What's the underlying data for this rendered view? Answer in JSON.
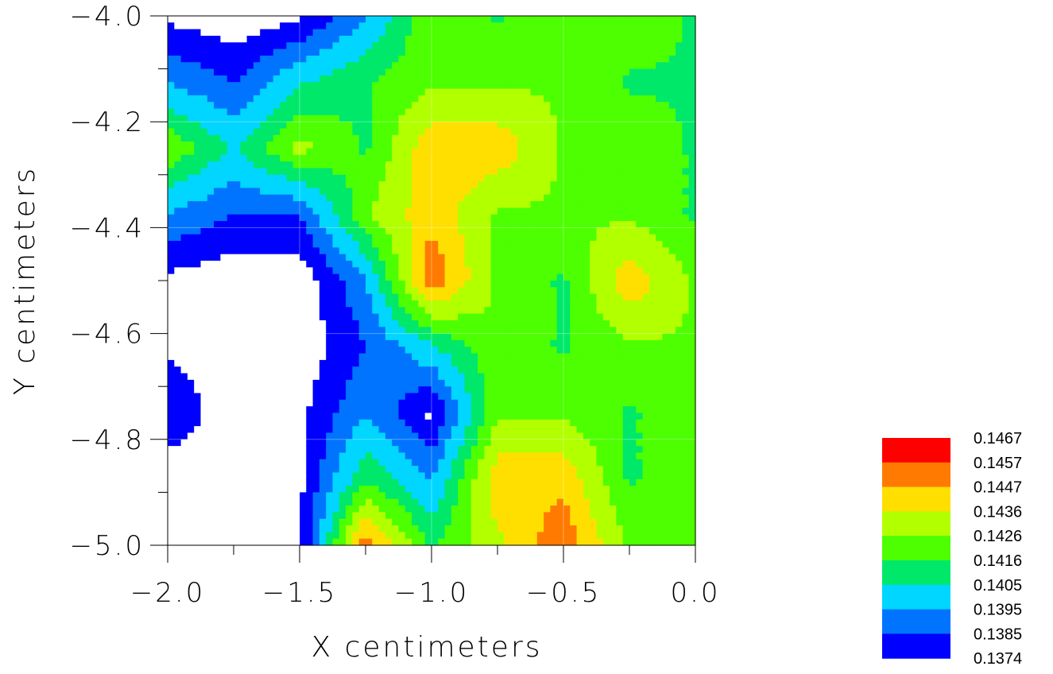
{
  "chart_data": {
    "type": "contour",
    "xlabel": "X centimeters",
    "ylabel": "Y centimeters",
    "xlim": [
      -2.0,
      0.0
    ],
    "ylim": [
      -5.0,
      -4.0
    ],
    "x_ticks": [
      "−2.0",
      "−1.5",
      "−1.0",
      "−0.5",
      "0.0"
    ],
    "y_ticks": [
      "−4.0",
      "−4.2",
      "−4.4",
      "−4.6",
      "−4.8",
      "−5.0"
    ],
    "x_tick_values": [
      -2.0,
      -1.5,
      -1.0,
      -0.5,
      0.0
    ],
    "y_tick_values": [
      -4.0,
      -4.2,
      -4.4,
      -4.6,
      -4.8,
      -5.0
    ],
    "grid": true,
    "legend_position": "bottom-right",
    "levels": [
      "0.1467",
      "0.1457",
      "0.1447",
      "0.1436",
      "0.1426",
      "0.1416",
      "0.1405",
      "0.1395",
      "0.1385",
      "0.1374"
    ],
    "level_colors": [
      "#ff0000",
      "#ff7a00",
      "#ffdf00",
      "#b2ff00",
      "#4dff00",
      "#00e86a",
      "#00d6ff",
      "#0074ff",
      "#0000ff",
      "#ffffff"
    ],
    "grid_x": [
      -2.0,
      -1.75,
      -1.5,
      -1.25,
      -1.0,
      -0.75,
      -0.5,
      -0.25,
      0.0
    ],
    "grid_y": [
      -4.0,
      -4.125,
      -4.25,
      -4.375,
      -4.5,
      -4.625,
      -4.75,
      -4.875,
      -5.0
    ],
    "z": [
      [
        0.13825,
        0.13775,
        0.13825,
        0.14045,
        0.14345,
        0.14245,
        0.14345,
        0.14345,
        0.14245
      ],
      [
        0.14045,
        0.13945,
        0.14145,
        0.14245,
        0.14345,
        0.14345,
        0.14345,
        0.14245,
        0.14245
      ],
      [
        0.14345,
        0.14145,
        0.14395,
        0.14245,
        0.14545,
        0.14545,
        0.14345,
        0.14345,
        0.14245
      ],
      [
        0.14045,
        0.13945,
        0.13945,
        0.14345,
        0.14545,
        0.14345,
        0.14345,
        0.14345,
        0.14245
      ],
      [
        0.13825,
        0.13775,
        0.13775,
        0.14045,
        0.14645,
        0.14345,
        0.14245,
        0.14545,
        0.14345
      ],
      [
        0.13825,
        0.13775,
        0.13775,
        0.13945,
        0.14145,
        0.14345,
        0.14245,
        0.14345,
        0.14345
      ],
      [
        0.13945,
        0.13775,
        0.13825,
        0.14045,
        0.13825,
        0.14345,
        0.14345,
        0.14245,
        0.14345
      ],
      [
        0.13775,
        0.13775,
        0.13825,
        0.14245,
        0.14045,
        0.14545,
        0.14545,
        0.14245,
        0.14345
      ],
      [
        0.13775,
        0.13775,
        0.13825,
        0.14645,
        0.14245,
        0.14445,
        0.14645,
        0.14345,
        0.14345
      ]
    ]
  }
}
